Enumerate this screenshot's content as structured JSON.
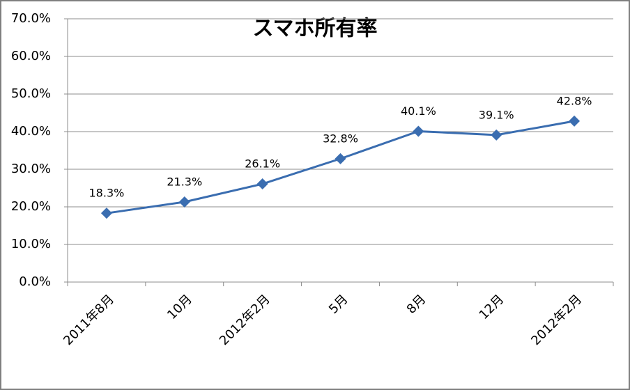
{
  "chart_data": {
    "type": "line",
    "title": "スマホ所有率",
    "categories": [
      "2011年8月",
      "10月",
      "2012年2月",
      "5月",
      "8月",
      "12月",
      "2012年2月"
    ],
    "values": [
      18.3,
      21.3,
      26.1,
      32.8,
      40.1,
      39.1,
      42.8
    ],
    "value_labels": [
      "18.3%",
      "21.3%",
      "26.1%",
      "32.8%",
      "40.1%",
      "39.1%",
      "42.8%"
    ],
    "color": "#3a6db0",
    "ylim": [
      0,
      70
    ],
    "yticks": [
      {
        "value": 0,
        "label": "0.0%"
      },
      {
        "value": 10,
        "label": "10.0%"
      },
      {
        "value": 20,
        "label": "20.0%"
      },
      {
        "value": 30,
        "label": "30.0%"
      },
      {
        "value": 40,
        "label": "40.0%"
      },
      {
        "value": 50,
        "label": "50.0%"
      },
      {
        "value": 60,
        "label": "60.0%"
      },
      {
        "value": 70,
        "label": "70.0%"
      }
    ],
    "grid": true
  }
}
